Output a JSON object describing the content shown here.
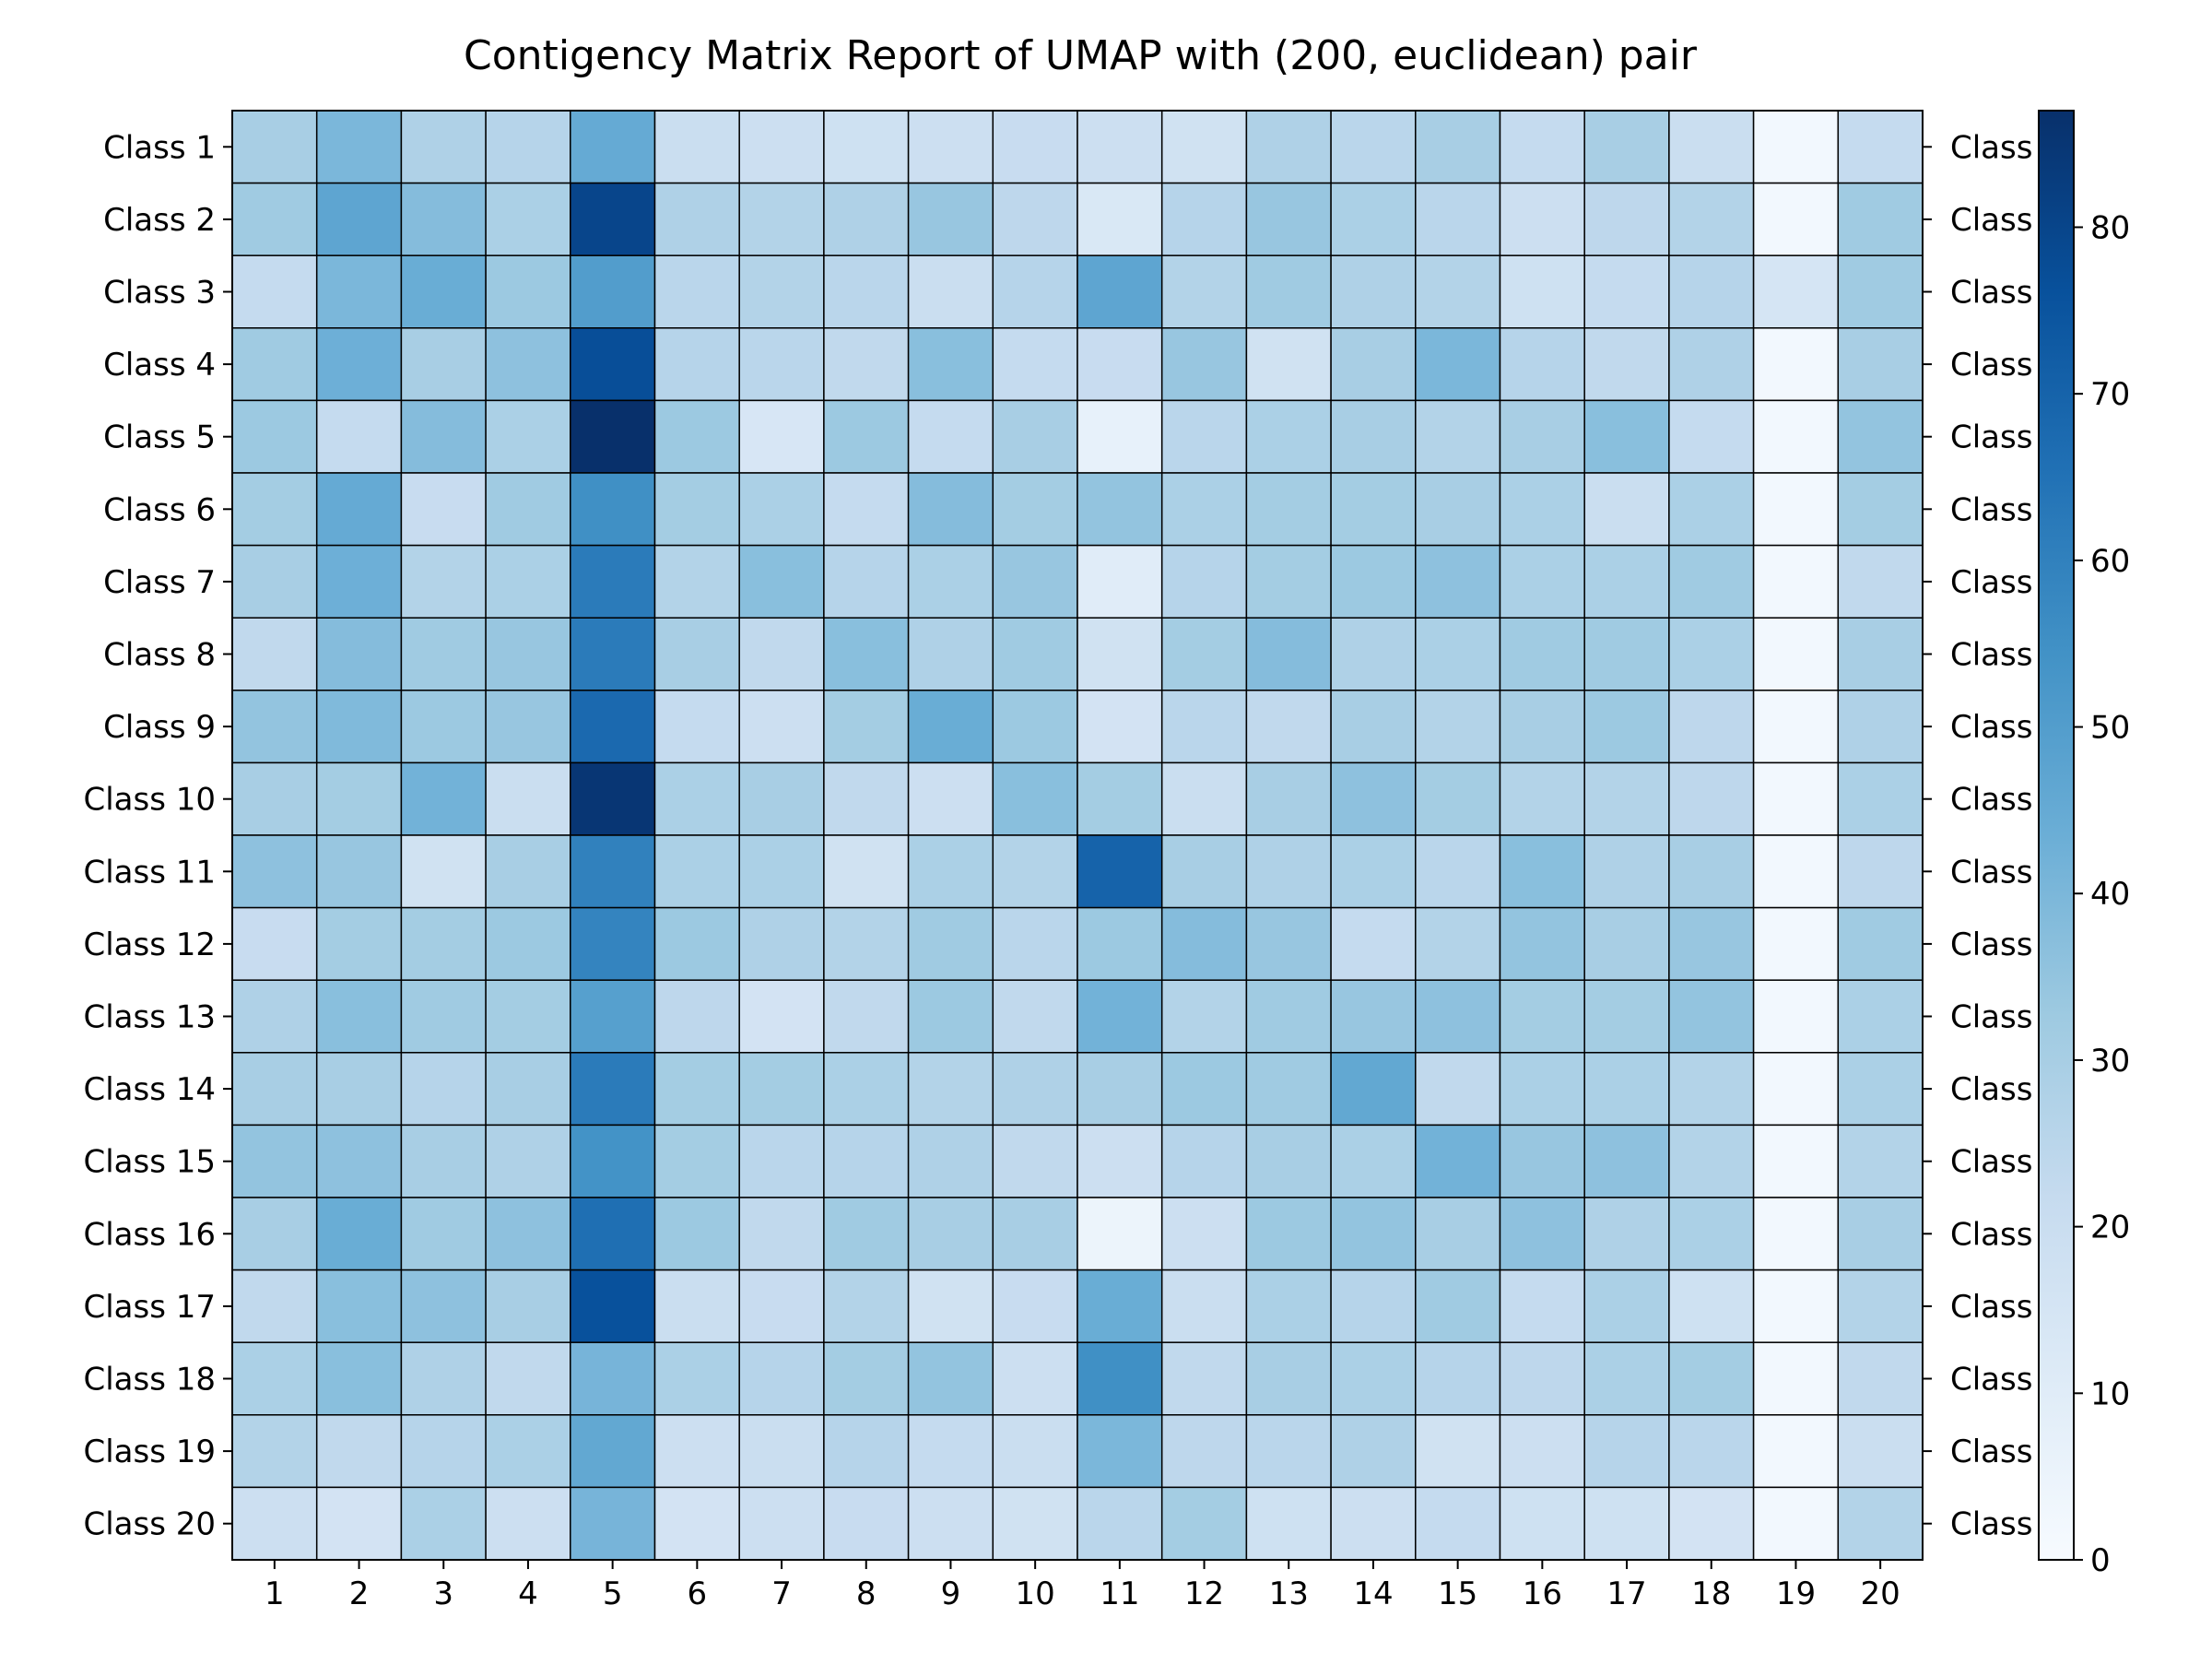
{
  "chart_data": {
    "type": "heatmap",
    "title": "Contigency Matrix Report of UMAP with (200, euclidean) pair",
    "xlabel": "",
    "ylabel": "",
    "row_labels": [
      "Class 1",
      "Class 2",
      "Class 3",
      "Class 4",
      "Class 5",
      "Class 6",
      "Class 7",
      "Class 8",
      "Class 9",
      "Class 10",
      "Class 11",
      "Class 12",
      "Class 13",
      "Class 14",
      "Class 15",
      "Class 16",
      "Class 17",
      "Class 18",
      "Class 19",
      "Class 20"
    ],
    "col_labels": [
      "1",
      "2",
      "3",
      "4",
      "5",
      "6",
      "7",
      "8",
      "9",
      "10",
      "11",
      "12",
      "13",
      "14",
      "15",
      "16",
      "17",
      "18",
      "19",
      "20"
    ],
    "right_labels": [
      "Class",
      "Class",
      "Class",
      "Class",
      "Class",
      "Class",
      "Class",
      "Class",
      "Class",
      "Class",
      "Class",
      "Class",
      "Class",
      "Class",
      "Class",
      "Class",
      "Class",
      "Class",
      "Class",
      "Class"
    ],
    "colormap": "Blues",
    "colorbar": {
      "range": [
        0,
        87
      ],
      "ticks": [
        0,
        10,
        20,
        30,
        40,
        50,
        60,
        70,
        80
      ]
    },
    "values": [
      [
        30,
        40,
        28,
        26,
        45,
        20,
        19,
        18,
        19,
        21,
        19,
        17,
        28,
        25,
        30,
        22,
        30,
        20,
        2,
        22
      ],
      [
        32,
        47,
        38,
        29,
        80,
        28,
        27,
        28,
        34,
        24,
        13,
        26,
        34,
        29,
        25,
        19,
        24,
        27,
        2,
        32
      ],
      [
        22,
        40,
        44,
        33,
        50,
        25,
        27,
        25,
        20,
        26,
        47,
        27,
        32,
        28,
        27,
        18,
        22,
        26,
        15,
        32
      ],
      [
        32,
        43,
        30,
        36,
        77,
        26,
        25,
        23,
        37,
        22,
        21,
        34,
        17,
        30,
        40,
        26,
        23,
        28,
        2,
        30
      ],
      [
        33,
        22,
        38,
        29,
        87,
        33,
        14,
        33,
        22,
        30,
        7,
        25,
        29,
        30,
        27,
        30,
        37,
        22,
        2,
        35
      ],
      [
        31,
        45,
        21,
        32,
        55,
        31,
        29,
        22,
        38,
        31,
        35,
        29,
        31,
        31,
        30,
        29,
        20,
        29,
        2,
        31
      ],
      [
        30,
        43,
        27,
        29,
        62,
        27,
        37,
        26,
        29,
        34,
        10,
        26,
        31,
        33,
        36,
        29,
        29,
        32,
        2,
        23
      ],
      [
        23,
        38,
        32,
        34,
        62,
        30,
        23,
        37,
        28,
        32,
        17,
        31,
        38,
        28,
        29,
        32,
        32,
        29,
        2,
        30
      ],
      [
        35,
        39,
        33,
        34,
        68,
        22,
        19,
        31,
        44,
        33,
        16,
        25,
        23,
        30,
        27,
        30,
        33,
        24,
        2,
        28
      ],
      [
        30,
        31,
        42,
        20,
        85,
        29,
        30,
        23,
        19,
        37,
        31,
        20,
        30,
        36,
        31,
        27,
        27,
        24,
        2,
        29
      ],
      [
        36,
        34,
        17,
        30,
        60,
        29,
        29,
        17,
        29,
        27,
        70,
        30,
        28,
        29,
        25,
        37,
        28,
        30,
        2,
        24
      ],
      [
        21,
        31,
        31,
        33,
        59,
        33,
        28,
        27,
        32,
        25,
        33,
        38,
        34,
        22,
        27,
        35,
        30,
        34,
        2,
        32
      ],
      [
        28,
        37,
        32,
        31,
        49,
        24,
        16,
        23,
        33,
        23,
        42,
        27,
        32,
        34,
        36,
        31,
        31,
        35,
        2,
        29
      ],
      [
        30,
        30,
        26,
        30,
        62,
        31,
        31,
        29,
        27,
        28,
        30,
        33,
        32,
        46,
        23,
        29,
        29,
        27,
        2,
        29
      ],
      [
        35,
        36,
        30,
        28,
        54,
        31,
        25,
        26,
        28,
        23,
        19,
        26,
        30,
        29,
        42,
        34,
        36,
        27,
        2,
        27
      ],
      [
        30,
        44,
        32,
        36,
        66,
        33,
        23,
        32,
        30,
        30,
        5,
        19,
        33,
        35,
        30,
        36,
        28,
        29,
        2,
        30
      ],
      [
        23,
        37,
        36,
        30,
        76,
        20,
        21,
        27,
        17,
        21,
        44,
        20,
        29,
        26,
        32,
        22,
        29,
        18,
        2,
        27
      ],
      [
        29,
        37,
        28,
        23,
        41,
        29,
        26,
        31,
        35,
        19,
        55,
        23,
        30,
        29,
        26,
        24,
        29,
        31,
        2,
        23
      ],
      [
        27,
        23,
        26,
        29,
        46,
        19,
        20,
        26,
        22,
        20,
        40,
        24,
        25,
        28,
        17,
        19,
        26,
        25,
        2,
        20
      ],
      [
        19,
        16,
        29,
        19,
        41,
        16,
        19,
        21,
        19,
        17,
        25,
        31,
        18,
        19,
        22,
        18,
        18,
        16,
        2,
        27
      ]
    ]
  }
}
